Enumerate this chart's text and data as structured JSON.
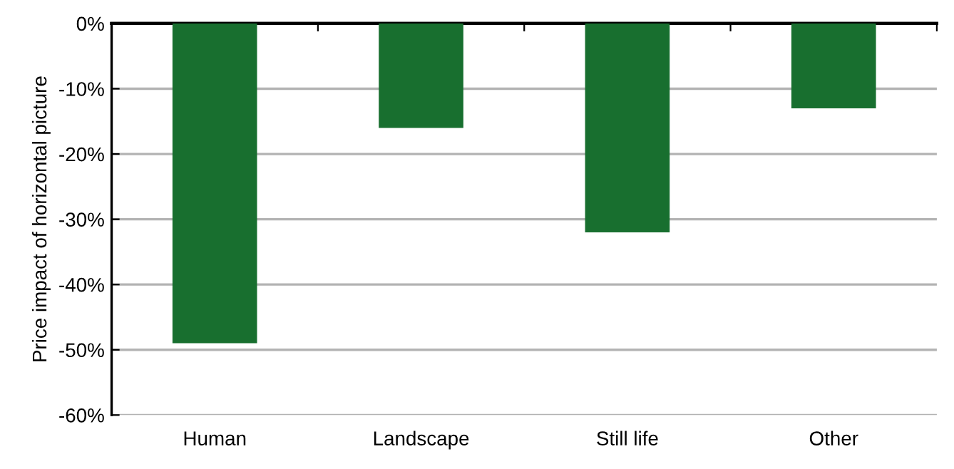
{
  "chart_data": {
    "type": "bar",
    "ylabel": "Price impact of horizontal picture",
    "categories": [
      "Human",
      "Landscape",
      "Still life",
      "Other"
    ],
    "values": [
      -49,
      -16,
      -32,
      -13
    ],
    "color": "#186f2f",
    "ylim": [
      -60,
      0
    ],
    "yticks": [
      {
        "value": 0,
        "label": "0%"
      },
      {
        "value": -10,
        "label": "-10%"
      },
      {
        "value": -20,
        "label": "-20%"
      },
      {
        "value": -30,
        "label": "-30%"
      },
      {
        "value": -40,
        "label": "-40%"
      },
      {
        "value": -50,
        "label": "-50%"
      },
      {
        "value": -60,
        "label": "-60%"
      }
    ],
    "grid": "y"
  }
}
